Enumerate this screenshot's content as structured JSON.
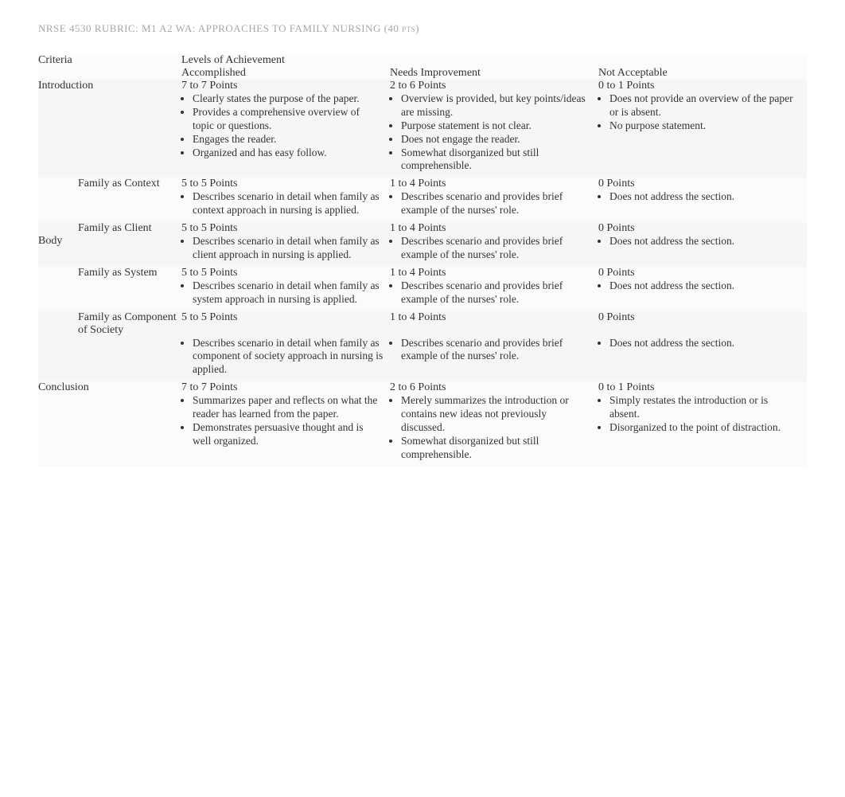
{
  "title": "NRSE 4530 RUBRIC: M1 A2 WA: APPROACHES TO FAMILY NURSING (40 pts)",
  "headers": {
    "criteria": "Criteria",
    "levels": "Levels of Achievement",
    "accomplished": "Accomplished",
    "needs_improvement": "Needs Improvement",
    "not_acceptable": "Not Acceptable"
  },
  "categories": {
    "intro": "Introduction",
    "body": "Body",
    "conclusion": "Conclusion"
  },
  "rows": [
    {
      "criteria": "",
      "accomplished": {
        "points": "7 to 7 Points",
        "bullets": [
          "Clearly states the purpose of the paper.",
          "Provides a comprehensive overview of topic or questions.",
          "Engages the reader.",
          "Organized and has easy follow."
        ]
      },
      "needs": {
        "points": "2 to 6 Points",
        "bullets": [
          "Overview is provided, but key points/ideas are missing.",
          "Purpose statement is not clear.",
          "Does not engage the reader.",
          "Somewhat disorganized but still comprehensible."
        ]
      },
      "not": {
        "points": "0 to 1 Points",
        "bullets": [
          "Does not provide an overview of the paper or is absent.",
          "No purpose statement."
        ]
      }
    },
    {
      "criteria": "Family as Context",
      "accomplished": {
        "points": "5 to 5 Points",
        "bullets": [
          "Describes scenario in detail when family as context approach in nursing is applied."
        ]
      },
      "needs": {
        "points": "1 to 4 Points",
        "bullets": [
          "Describes scenario and provides brief example of the nurses' role."
        ]
      },
      "not": {
        "points": "0 Points",
        "bullets": [
          "Does not address the section."
        ]
      }
    },
    {
      "criteria": "Family as Client",
      "accomplished": {
        "points": "5 to 5 Points",
        "bullets": [
          "Describes scenario in detail when family as client approach in nursing is applied."
        ]
      },
      "needs": {
        "points": "1 to 4 Points",
        "bullets": [
          "Describes scenario and provides brief example of the nurses' role."
        ]
      },
      "not": {
        "points": "0 Points",
        "bullets": [
          "Does not address the section."
        ]
      }
    },
    {
      "criteria": "Family as System",
      "accomplished": {
        "points": "5 to 5 Points",
        "bullets": [
          "Describes scenario in detail when family as system approach in nursing is applied."
        ]
      },
      "needs": {
        "points": "1 to 4 Points",
        "bullets": [
          "Describes scenario and provides brief example of the nurses' role."
        ]
      },
      "not": {
        "points": "0 Points",
        "bullets": [
          "Does not address the section."
        ]
      }
    },
    {
      "criteria": "Family as Component of Society",
      "accomplished": {
        "points": "5 to 5 Points",
        "bullets": [
          "Describes scenario in detail when family as component of society approach in nursing is applied."
        ]
      },
      "needs": {
        "points": "1 to 4 Points",
        "bullets": [
          "Describes scenario and provides brief example of the nurses' role."
        ]
      },
      "not": {
        "points": "0 Points",
        "bullets": [
          "Does not address the section."
        ]
      }
    },
    {
      "criteria": "",
      "accomplished": {
        "points": "7 to 7 Points",
        "bullets": [
          "Summarizes paper and reflects on what the reader has learned from the paper.",
          "Demonstrates persuasive thought and is well organized."
        ]
      },
      "needs": {
        "points": "2 to 6 Points",
        "bullets": [
          "Merely summarizes the introduction or contains new ideas not previously discussed.",
          "Somewhat disorganized but still comprehensible."
        ]
      },
      "not": {
        "points": "0 to 1 Points",
        "bullets": [
          "Simply restates the introduction or is absent.",
          "Disorganized to the point of distraction."
        ]
      }
    }
  ]
}
